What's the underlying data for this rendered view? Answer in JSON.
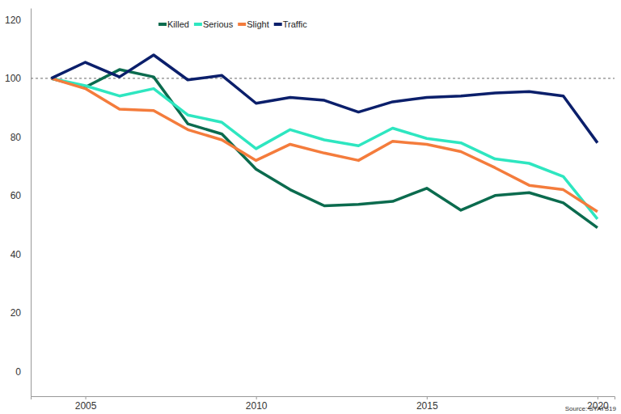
{
  "chart_data": {
    "type": "line",
    "source": "Source: STATS19",
    "x": [
      2004,
      2005,
      2006,
      2007,
      2008,
      2009,
      2010,
      2011,
      2012,
      2013,
      2014,
      2015,
      2016,
      2017,
      2018,
      2019,
      2020
    ],
    "series": [
      {
        "name": "Killed",
        "color": "#0b6b4e",
        "values": [
          100,
          97,
          103,
          100.5,
          84.5,
          81,
          69,
          62,
          56.5,
          57,
          58,
          62.5,
          55,
          60,
          61,
          57.5,
          49
        ]
      },
      {
        "name": "Serious",
        "color": "#2ee6c0",
        "values": [
          100,
          97.5,
          94,
          96.5,
          87.5,
          85,
          76,
          82.5,
          79,
          77,
          83,
          79.5,
          78,
          72.5,
          71,
          66.5,
          52
        ]
      },
      {
        "name": "Slight",
        "color": "#f47c3c",
        "values": [
          100,
          96.5,
          89.5,
          89,
          82.5,
          79,
          72,
          77.5,
          74.5,
          72,
          78.5,
          77.5,
          75,
          69.5,
          63.5,
          62,
          54.5
        ]
      },
      {
        "name": "Traffic",
        "color": "#0b1f6b",
        "values": [
          100,
          105.5,
          100.5,
          108,
          99.5,
          101,
          91.5,
          93.5,
          92.5,
          88.5,
          92,
          93.5,
          94,
          95,
          95.5,
          94,
          78
        ]
      }
    ],
    "reference_line": 100,
    "xlim": [
      2003.4,
      2020.5
    ],
    "xticks": [
      2005,
      2010,
      2015,
      2020
    ],
    "ylim": [
      -8.5,
      124
    ],
    "yticks": [
      0,
      20,
      40,
      60,
      80,
      100,
      120
    ],
    "grid": false,
    "legend": "top"
  }
}
